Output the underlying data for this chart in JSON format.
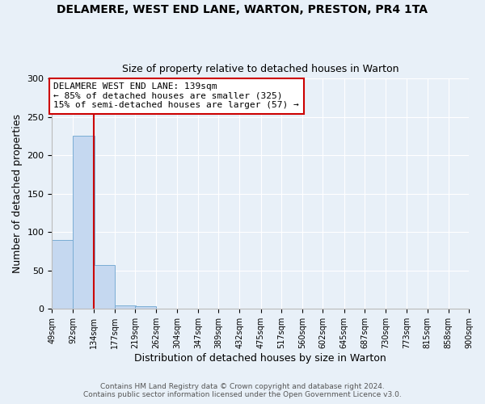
{
  "title": "DELAMERE, WEST END LANE, WARTON, PRESTON, PR4 1TA",
  "subtitle": "Size of property relative to detached houses in Warton",
  "xlabel": "Distribution of detached houses by size in Warton",
  "ylabel": "Number of detached properties",
  "bin_edges": [
    49,
    92,
    134,
    177,
    219,
    262,
    304,
    347,
    389,
    432,
    475,
    517,
    560,
    602,
    645,
    687,
    730,
    773,
    815,
    858,
    900
  ],
  "bin_labels": [
    "49sqm",
    "92sqm",
    "134sqm",
    "177sqm",
    "219sqm",
    "262sqm",
    "304sqm",
    "347sqm",
    "389sqm",
    "432sqm",
    "475sqm",
    "517sqm",
    "560sqm",
    "602sqm",
    "645sqm",
    "687sqm",
    "730sqm",
    "773sqm",
    "815sqm",
    "858sqm",
    "900sqm"
  ],
  "counts": [
    90,
    226,
    57,
    5,
    3,
    0,
    0,
    0,
    0,
    0,
    0,
    0,
    0,
    0,
    0,
    0,
    0,
    0,
    0,
    0
  ],
  "bar_color": "#c5d8f0",
  "bar_edge_color": "#7aadd4",
  "property_line_x": 134,
  "property_line_color": "#cc0000",
  "annotation_line1": "DELAMERE WEST END LANE: 139sqm",
  "annotation_line2": "← 85% of detached houses are smaller (325)",
  "annotation_line3": "15% of semi-detached houses are larger (57) →",
  "annotation_box_color": "#ffffff",
  "annotation_box_edge_color": "#cc0000",
  "ylim": [
    0,
    300
  ],
  "yticks": [
    0,
    50,
    100,
    150,
    200,
    250,
    300
  ],
  "bg_color": "#e8f0f8",
  "footnote1": "Contains HM Land Registry data © Crown copyright and database right 2024.",
  "footnote2": "Contains public sector information licensed under the Open Government Licence v3.0."
}
